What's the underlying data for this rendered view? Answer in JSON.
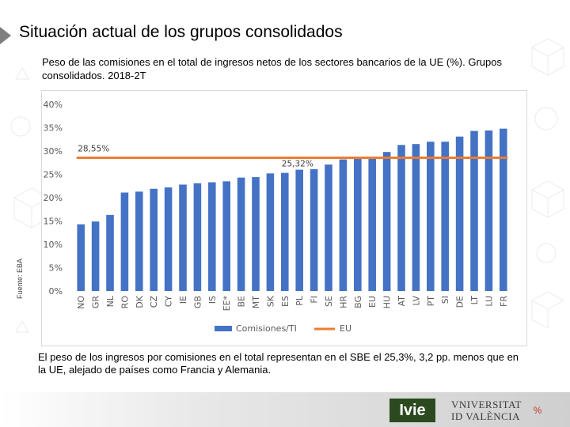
{
  "slide": {
    "title": "Situación actual de los grupos consolidados",
    "subtitle": "Peso de las comisiones en el total de ingresos netos de los sectores bancarios de la UE (%). Grupos consolidados. 2018-2T",
    "source": "Fuente: EBA",
    "note": "El peso de los ingresos por comisiones en el total representan en el SBE el 25,3%, 3,2 pp. menos que en la UE, alejado de países como Francia y Alemania.",
    "logos": {
      "ivie": "Ivie",
      "uv_line1": "VNIVERSITAT",
      "uv_line2": "ID VALÈNCIA",
      "pct": "%"
    }
  },
  "colors": {
    "bar": "#4472c4",
    "eu_line": "#ed7d31",
    "grid": "#d9d9d9",
    "axis_text": "#595959"
  },
  "chart_data": {
    "type": "bar",
    "title": "",
    "xlabel": "",
    "ylabel": "",
    "ylim": [
      0,
      40
    ],
    "ytick_step": 5,
    "ytick_labels": [
      "0%",
      "5%",
      "10%",
      "15%",
      "20%",
      "25%",
      "30%",
      "35%",
      "40%"
    ],
    "categories": [
      "NO",
      "GR",
      "NL",
      "RO",
      "DK",
      "CZ",
      "CY",
      "IE",
      "GB",
      "IS",
      "EE*",
      "BE",
      "MT",
      "SK",
      "ES",
      "PL",
      "FI",
      "SE",
      "HR",
      "BG",
      "EU",
      "HU",
      "AT",
      "LV",
      "PT",
      "SI",
      "DE",
      "LT",
      "LU",
      "FR"
    ],
    "series": [
      {
        "name": "Comisiones/TI",
        "values": [
          14.3,
          14.9,
          16.3,
          21.1,
          21.3,
          21.9,
          22.2,
          22.8,
          23.1,
          23.3,
          23.5,
          24.3,
          24.4,
          25.2,
          25.32,
          26.0,
          26.1,
          27.1,
          28.2,
          28.3,
          28.55,
          29.8,
          31.3,
          31.5,
          32.0,
          32.0,
          33.1,
          34.3,
          34.4,
          34.8
        ]
      }
    ],
    "reference_line": {
      "name": "EU",
      "value": 28.55
    },
    "annotations": [
      {
        "text": "28,55%",
        "category": "NO",
        "value": 28.55
      },
      {
        "text": "25,32%",
        "category": "ES",
        "value": 25.32
      }
    ],
    "legend": {
      "placement": "bottom",
      "items": [
        "Comisiones/TI",
        "EU"
      ]
    }
  }
}
